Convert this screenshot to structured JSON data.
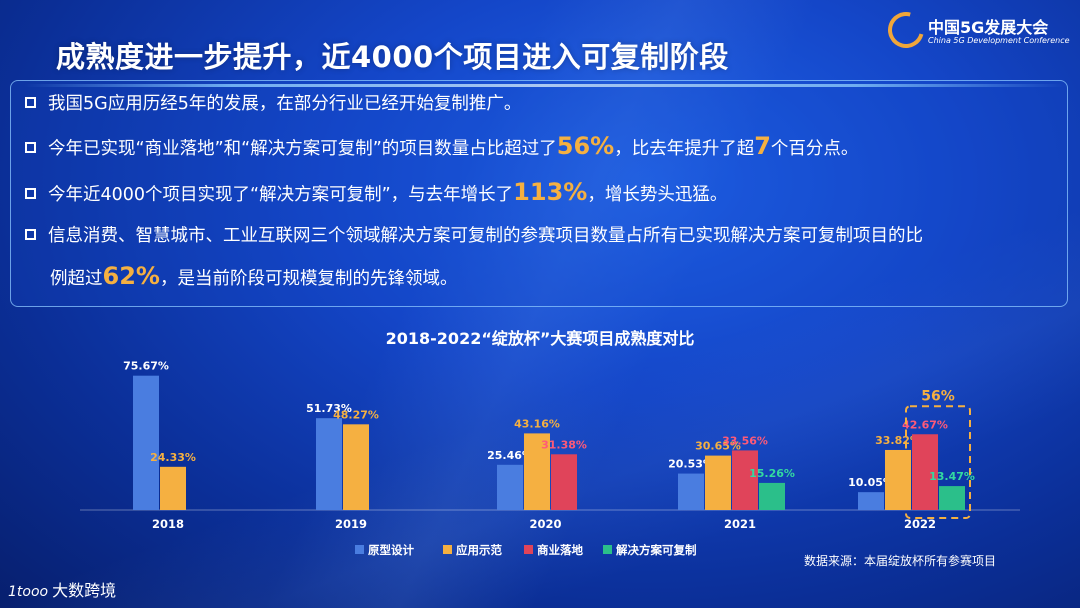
{
  "header": {
    "logo_title": "中国5G发展大会",
    "logo_subtitle": "China 5G Development Conference",
    "page_title": "成熟度进一步提升，近4000个项目进入可复制阶段"
  },
  "bullets": {
    "b1": "我国5G应用历经5年的发展，在部分行业已经开始复制推广。",
    "b2_pre": "今年已实现“商业落地”和“解决方案可复制”的项目数量占比超过了",
    "b2_hl1": "56%",
    "b2_mid": "，比去年提升了超",
    "b2_hl2": "7",
    "b2_post": "个百分点。",
    "b3_pre": "今年近4000个项目实现了“解决方案可复制”，与去年增长了",
    "b3_hl": "113%",
    "b3_post": "，增长势头迅猛。",
    "b4_line1": "信息消费、智慧城市、工业互联网三个领域解决方案可复制的参赛项目数量占所有已实现解决方案可复制项目的比",
    "b4_pre": "例超过",
    "b4_hl": "62%",
    "b4_post": "，是当前阶段可规模复制的先锋领域。"
  },
  "chart_data": {
    "type": "bar",
    "title": "2018-2022“绽放杯”大赛项目成熟度对比",
    "categories": [
      "2018",
      "2019",
      "2020",
      "2021",
      "2022"
    ],
    "ylim": [
      0,
      80
    ],
    "legend_position": "bottom",
    "series": [
      {
        "name": "原型设计",
        "color": "#4a7de0",
        "label_color": "#ffffff",
        "values": [
          75.67,
          51.73,
          25.46,
          20.53,
          10.05
        ],
        "labels": [
          "75.67%",
          "51.73%",
          "25.46%",
          "20.53%",
          "10.05%"
        ]
      },
      {
        "name": "应用示范",
        "color": "#f5b041",
        "label_color": "#f5b041",
        "values": [
          24.33,
          48.27,
          43.16,
          30.65,
          33.82
        ],
        "labels": [
          "24.33%",
          "48.27%",
          "43.16%",
          "30.65%",
          "33.82%"
        ]
      },
      {
        "name": "商业落地",
        "color": "#e0445a",
        "label_color": "#ff5a78",
        "values": [
          null,
          null,
          31.38,
          33.56,
          42.67
        ],
        "labels": [
          null,
          null,
          "31.38%",
          "33.56%",
          "42.67%"
        ]
      },
      {
        "name": "解决方案可复制",
        "color": "#2bbf8a",
        "label_color": "#33d9a0",
        "values": [
          null,
          null,
          null,
          15.26,
          13.47
        ],
        "labels": [
          null,
          null,
          null,
          "15.26%",
          "13.47%"
        ]
      }
    ],
    "annotation": {
      "text": "56%",
      "category": "2022"
    }
  },
  "footer": {
    "source": "数据来源：本届绽放杯所有参赛项目",
    "brand_icon": "1tooo",
    "brand": "大数跨境"
  }
}
